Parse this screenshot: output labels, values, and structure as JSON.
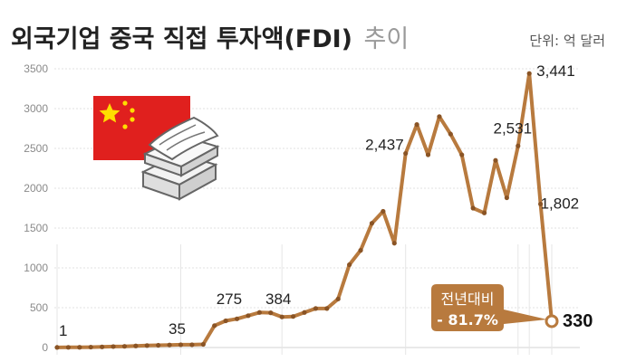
{
  "header": {
    "title": "외국기업 중국 직접 투자액(FDI)",
    "title_suffix": "추이",
    "unit": "단위: 억 달러"
  },
  "callout": {
    "label": "전년대비",
    "value": "- 81.7%"
  },
  "colors": {
    "line": "#b87a3e",
    "point": "#8a5425",
    "callout_bg": "#b87a3e",
    "flag_red": "#e0201e",
    "flag_star": "#ffde00"
  },
  "icons": [
    "china-flag-icon",
    "money-stack-icon"
  ],
  "chart_data": {
    "type": "line",
    "title": "외국기업 중국 직접 투자액(FDI) 추이",
    "unit": "억 달러",
    "ylim": [
      0,
      3500
    ],
    "yticks": [
      0,
      500,
      1000,
      1500,
      2000,
      2500,
      3000,
      3500
    ],
    "grid": true,
    "series": [
      {
        "values": [
          1,
          2,
          3,
          5,
          8,
          12,
          15,
          20,
          25,
          28,
          32,
          35,
          35,
          40,
          275,
          335,
          360,
          400,
          440,
          436,
          384,
          390,
          440,
          490,
          490,
          610,
          1040,
          1220,
          1560,
          1710,
          1310,
          2437,
          2800,
          2420,
          2900,
          2680,
          2420,
          1750,
          1690,
          2350,
          1880,
          2531,
          3441,
          1802,
          330
        ]
      }
    ],
    "labeled_points": [
      {
        "index": 0,
        "label": "1"
      },
      {
        "index": 11,
        "label": "35"
      },
      {
        "index": 14,
        "label": "275"
      },
      {
        "index": 20,
        "label": "384"
      },
      {
        "index": 31,
        "label": "2,437"
      },
      {
        "index": 41,
        "label": "2,531"
      },
      {
        "index": 42,
        "label": "3,441"
      },
      {
        "index": 43,
        "label": "1,802"
      },
      {
        "index": 44,
        "label": "330"
      }
    ]
  }
}
